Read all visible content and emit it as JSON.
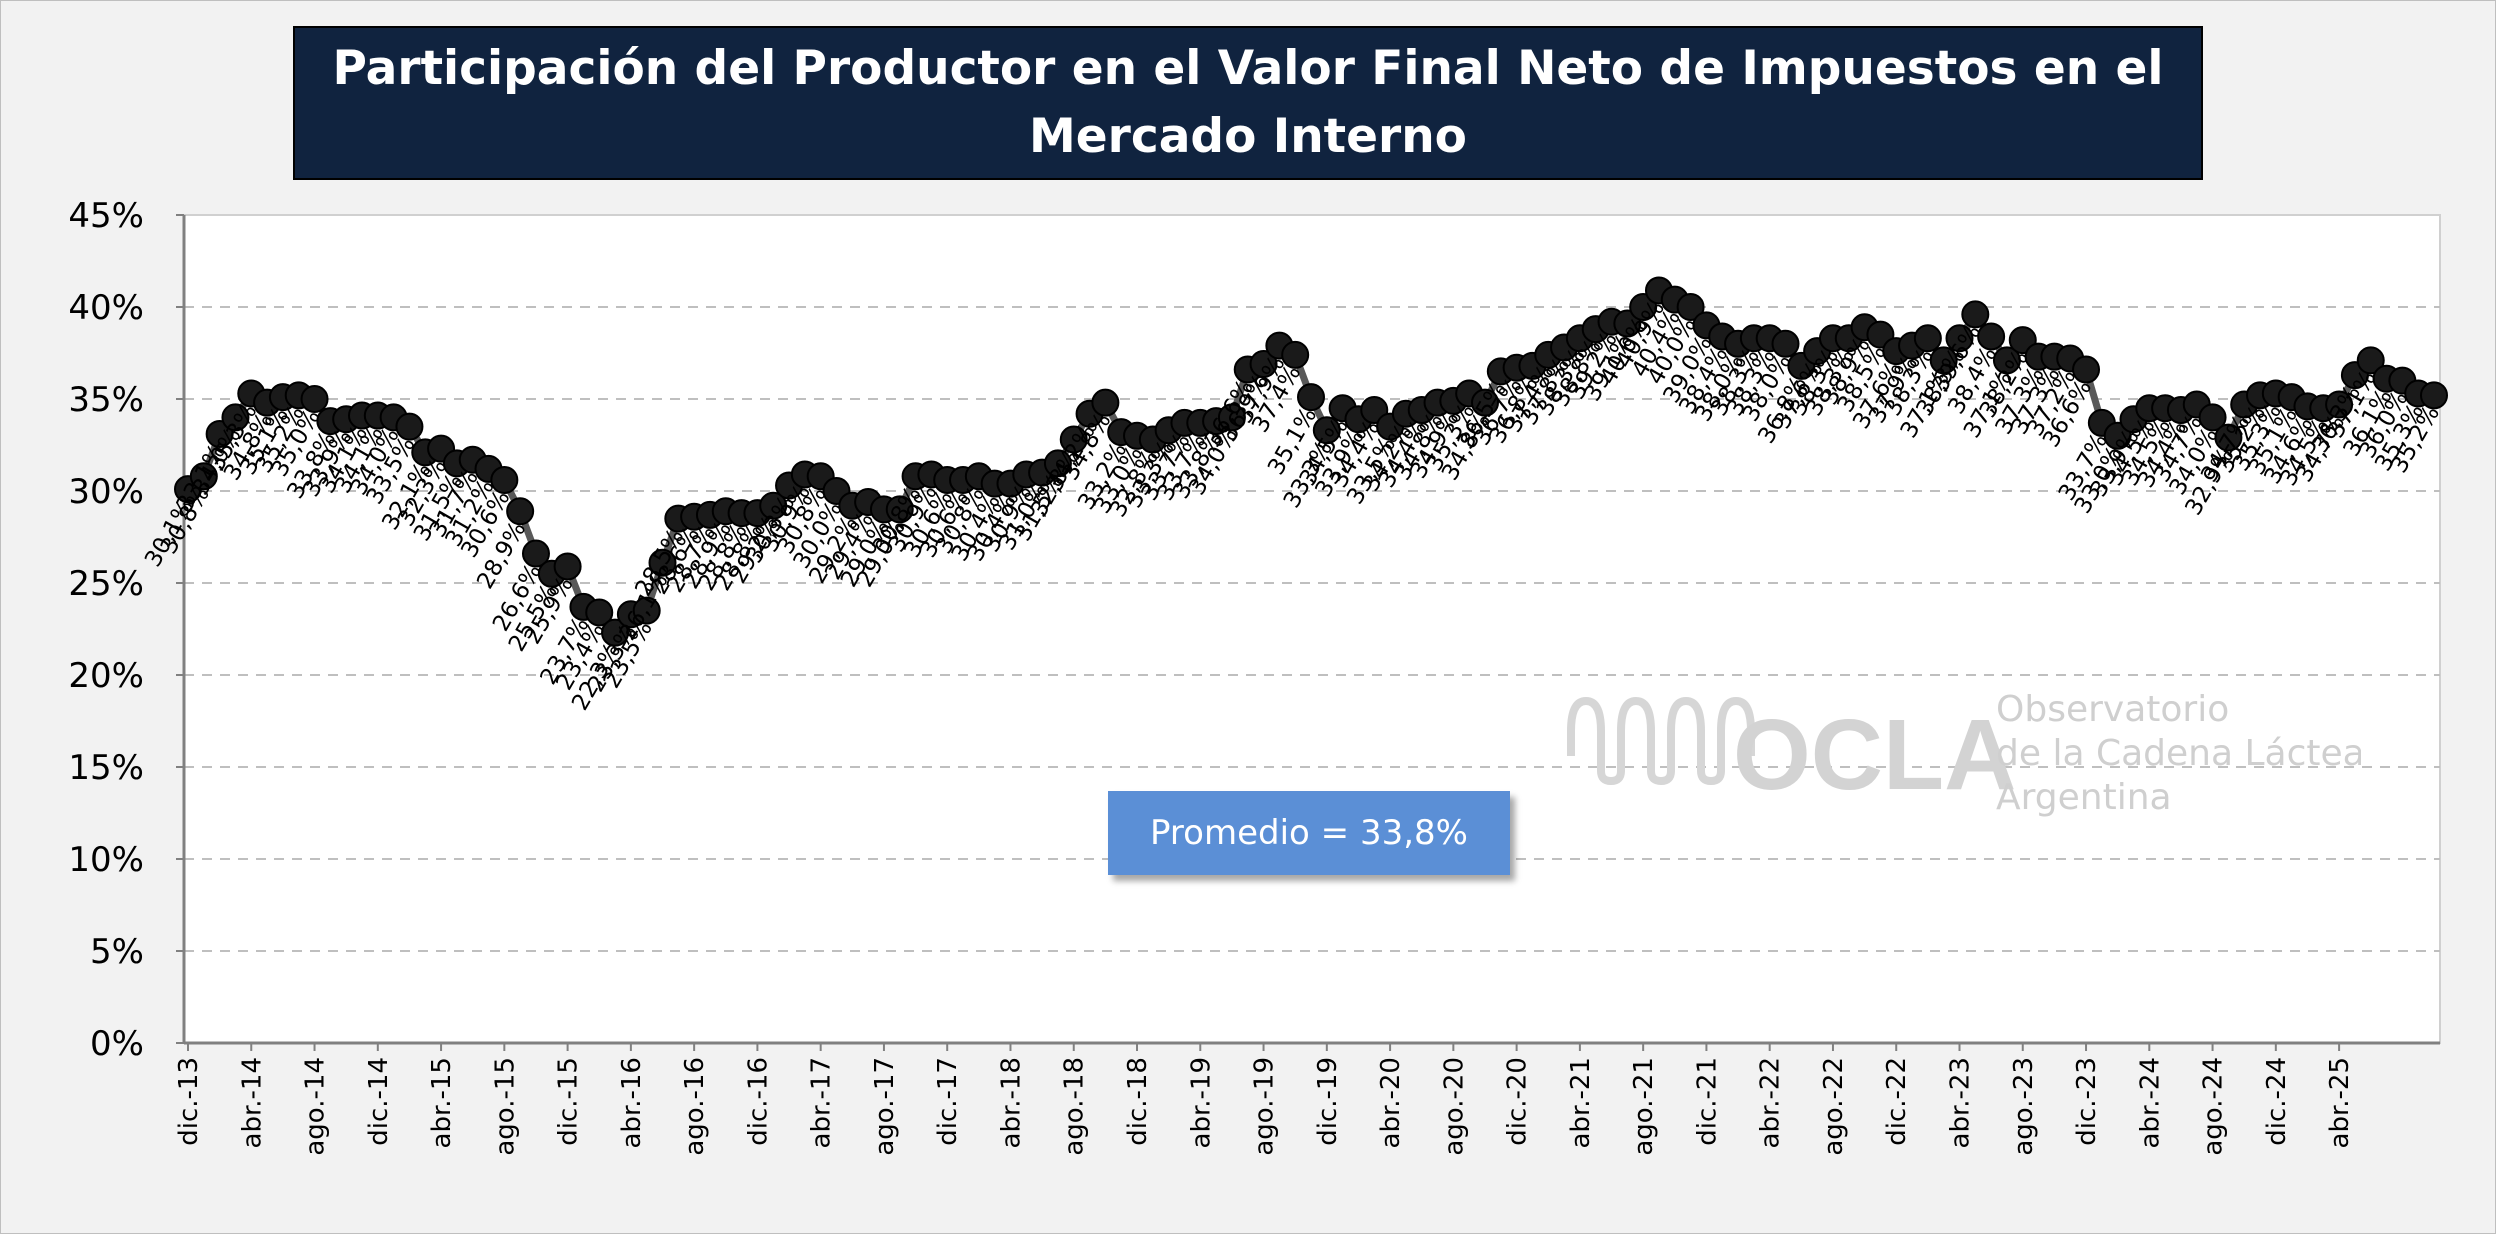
{
  "title": "Participación del Productor en el Valor Final Neto de Impuestos en el Mercado Interno",
  "average_label": "Promedio = 33,8%",
  "logo": {
    "mark": "OCLA",
    "line1": "Observatorio",
    "line2": "de la Cadena Láctea",
    "line3": "Argentina"
  },
  "colors": {
    "line": "#595959",
    "marker": "#1a1a1a",
    "title_bg": "#10233f",
    "avg_box": "#5b8fd6",
    "grid": "#bfbfbf"
  },
  "chart_data": {
    "type": "line",
    "title": "Participación del Productor en el Valor Final Neto de Impuestos en el Mercado Interno",
    "xlabel": "",
    "ylabel": "",
    "ylim": [
      0,
      45
    ],
    "yticks": [
      "0%",
      "5%",
      "10%",
      "15%",
      "20%",
      "25%",
      "30%",
      "35%",
      "40%",
      "45%"
    ],
    "grid": "horizontal dashed",
    "x_tick_labels": [
      "dic.-13",
      "abr.-14",
      "ago.-14",
      "dic.-14",
      "abr.-15",
      "ago.-15",
      "dic.-15",
      "abr.-16",
      "ago.-16",
      "dic.-16",
      "abr.-17",
      "ago.-17",
      "dic.-17",
      "abr.-18",
      "ago.-18",
      "dic.-18",
      "abr.-19",
      "ago.-19",
      "dic.-19",
      "abr.-20",
      "ago.-20",
      "dic.-20",
      "abr.-21",
      "ago.-21",
      "dic.-21",
      "abr.-22",
      "ago.-22",
      "dic.-22",
      "abr.-23",
      "ago.-23",
      "dic.-23",
      "abr.-24",
      "ago.-24",
      "dic.-24",
      "abr.-25"
    ],
    "series": [
      {
        "start": "dic.-13",
        "values": [
          30.1,
          30.8,
          33.1,
          34.0,
          35.3,
          34.8,
          35.1,
          35.2,
          35.0,
          33.8,
          33.9,
          34.1,
          34.1,
          34.0,
          33.5,
          32.1,
          32.3,
          31.5,
          31.7,
          31.2,
          30.6,
          28.9,
          26.6,
          25.5,
          25.9,
          23.7,
          23.4,
          22.3,
          23.3,
          23.5,
          26.1,
          28.5,
          28.6,
          28.7,
          28.9,
          28.8,
          28.8,
          29.2,
          30.3,
          30.9,
          30.8,
          30.0,
          29.2,
          29.4,
          29.0,
          29.0,
          30.8,
          30.9,
          30.6,
          30.6,
          30.8,
          30.4,
          30.4,
          30.9,
          31.0,
          31.5,
          32.8,
          34.2,
          34.8,
          33.2,
          33.0,
          32.8,
          33.3,
          33.7,
          33.7,
          33.8,
          34.0,
          36.6,
          36.9,
          37.9,
          37.4,
          35.1,
          33.3,
          34.5,
          33.9,
          34.4,
          33.5,
          34.2,
          34.4,
          34.8,
          34.9,
          35.3,
          34.8,
          36.5,
          36.7,
          36.8,
          37.4,
          37.8,
          38.3,
          38.8,
          39.2,
          39.1,
          40.0,
          40.9,
          40.4,
          40.0,
          39.0,
          38.4,
          38.0,
          38.3,
          38.3,
          38.0,
          36.8,
          37.6,
          38.3,
          38.3,
          38.9,
          38.5,
          37.6,
          37.9,
          38.3,
          37.1,
          38.3,
          39.6,
          38.4,
          37.1,
          38.2,
          37.3,
          37.3,
          37.2,
          36.6,
          33.7,
          33.0,
          33.9,
          34.5,
          34.5,
          34.4,
          34.7,
          34.0,
          32.9,
          34.7,
          35.2,
          35.3,
          35.1,
          34.6,
          34.5,
          34.7,
          36.3,
          37.1,
          36.1,
          36.0,
          35.3,
          35.2
        ],
        "labels": [
          "30,1%",
          "30,8%",
          "33,1%",
          "34,0%",
          "35,3%",
          "34,8%",
          "35,1%",
          "35,2%",
          "35,0%",
          "33,8%",
          "33,9%",
          "34,1%",
          "34,1%",
          "34,0%",
          "33,5%",
          "32,1%",
          "32,3%",
          "31,5%",
          "31,7%",
          "31,2%",
          "30,6%",
          "28,9%",
          "26,6%",
          "25,5%",
          "25,9%",
          "23,7%",
          "23,4%",
          "22,3%",
          "23,3%",
          "23,5%",
          "26,1%",
          "28,5%",
          "28,6%",
          "28,7%",
          "28,9%",
          "28,8%",
          "28,8%",
          "29,2%",
          "30,3%",
          "30,9%",
          "30,8%",
          "30,0%",
          "29,2%",
          "29,4%",
          "29,0%",
          "29,0%",
          "30,8%",
          "30,9%",
          "30,6%",
          "30,6%",
          "30,8%",
          "30,4%",
          "30,4%",
          "30,9%",
          "31,0%",
          "31,5%",
          "32,8%",
          "34,2%",
          "34,8%",
          "33,2%",
          "33,0%",
          "32,8%",
          "33,3%",
          "33,7%",
          "33,7%",
          "33,8%",
          "34,0%",
          "36,6%",
          "36,9%",
          "37,9%",
          "37,4%",
          "35,1%",
          "33,3%",
          "34,5%",
          "33,9%",
          "34,4%",
          "33,5%",
          "34,2%",
          "34,4%",
          "34,8%",
          "34,9%",
          "35,3%",
          "34,8%",
          "36,5%",
          "36,7%",
          "36,8%",
          "37,4%",
          "37,8%",
          "38,3%",
          "38,8%",
          "39,2%",
          "39,1%",
          "40,0%",
          "40,9%",
          "40,4%",
          "40,0%",
          "39,0%",
          "38,4%",
          "38,0%",
          "38,3%",
          "38,3%",
          "38,0%",
          "36,8%",
          "37,6%",
          "38,3%",
          "38,3%",
          "38,9%",
          "38,5%",
          "37,6%",
          "37,9%",
          "38,3%",
          "37,1%",
          "38,3%",
          "39,6%",
          "38,4%",
          "37,1%",
          "38,2%",
          "37,3%",
          "37,3%",
          "37,2%",
          "36,6%",
          "33,7%",
          "33,0%",
          "33,9%",
          "34,5%",
          "34,5%",
          "34,4%",
          "34,7%",
          "34,0%",
          "32,9%",
          "34,7%",
          "35,2%",
          "35,3%",
          "35,1%",
          "34,6%",
          "34,5%",
          "34,7%",
          "36,3%",
          "37,1%",
          "36,1%",
          "36,0%",
          "35,3%",
          "35,2%"
        ]
      }
    ],
    "average": 33.8
  }
}
